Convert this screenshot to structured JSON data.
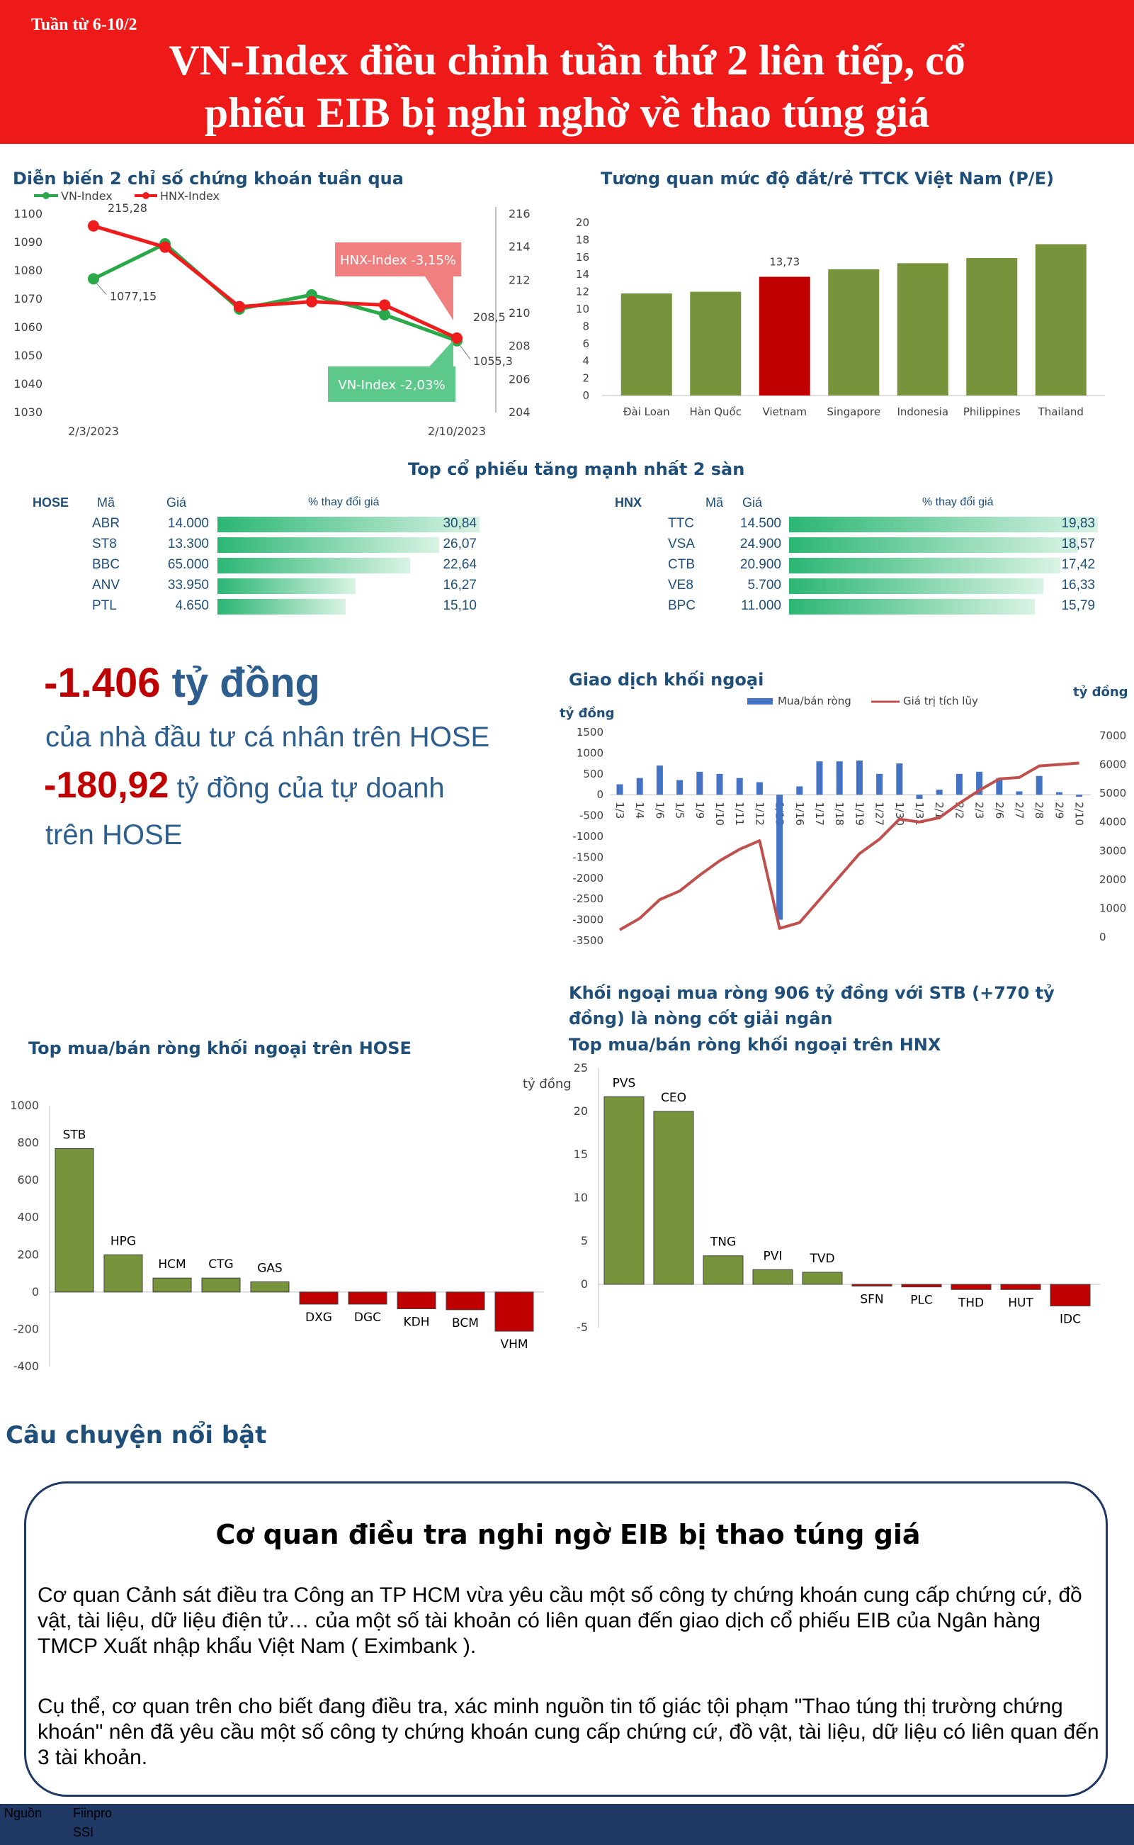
{
  "header": {
    "week": "Tuần từ 6-10/2",
    "title_line1": "VN-Index điều chỉnh tuần thứ 2 liên tiếp, cổ",
    "title_line2": "phiếu EIB bị nghi nghờ về thao túng giá"
  },
  "colors": {
    "header_red": "#ee1a1a",
    "navy": "#1f4e79",
    "green": "#77933c",
    "red": "#c00000",
    "blue": "#4472c4"
  },
  "index_section": {
    "title": "Diễn biến 2 chỉ số chứng khoán tuần qua",
    "vn_callout": "VN-Index -2,03%",
    "hnx_callout": "HNX-Index -3,15%"
  },
  "pe_section": {
    "title": "Tương quan mức độ đắt/rẻ TTCK Việt Nam (P/E)"
  },
  "top_section": {
    "title": "Top cổ phiếu tăng mạnh nhất 2 sàn"
  },
  "tables": {
    "hose": {
      "exchange": "HOSE",
      "col_code": "Mã",
      "col_price": "Giá",
      "col_pct": "% thay đổi giá",
      "rows": [
        {
          "code": "ABR",
          "price": "14.000",
          "pct_label": "30,84",
          "pct": 30.84
        },
        {
          "code": "ST8",
          "price": "13.300",
          "pct_label": "26,07",
          "pct": 26.07
        },
        {
          "code": "BBC",
          "price": "65.000",
          "pct_label": "22,64",
          "pct": 22.64
        },
        {
          "code": "ANV",
          "price": "33.950",
          "pct_label": "16,27",
          "pct": 16.27
        },
        {
          "code": "PTL",
          "price": "4.650",
          "pct_label": "15,10",
          "pct": 15.1
        }
      ]
    },
    "hnx": {
      "exchange": "HNX",
      "col_code": "Mã",
      "col_price": "Giá",
      "col_pct": "% thay đổi giá",
      "rows": [
        {
          "code": "TTC",
          "price": "14.500",
          "pct_label": "19,83",
          "pct": 19.83
        },
        {
          "code": "VSA",
          "price": "24.900",
          "pct_label": "18,57",
          "pct": 18.57
        },
        {
          "code": "CTB",
          "price": "20.900",
          "pct_label": "17,42",
          "pct": 17.42
        },
        {
          "code": "VE8",
          "price": "5.700",
          "pct_label": "16,33",
          "pct": 16.33
        },
        {
          "code": "BPC",
          "price": "11.000",
          "pct_label": "15,79",
          "pct": 15.79
        }
      ]
    }
  },
  "highlights": {
    "amount1": "-1.406",
    "unit1": " tỷ đồng",
    "desc1": "của nhà đầu tư cá nhân trên HOSE",
    "amount2": "-180,92",
    "desc2a": " tỷ đồng của tự doanh",
    "desc2b": "trên HOSE"
  },
  "foreign_section": {
    "title": "Giao dịch khối ngoại",
    "headline": "Khối ngoại mua ròng 906 tỷ đồng với STB (+770 tỷ đồng) là nòng cốt giải ngân",
    "hose_title": "Top mua/bán ròng khối ngoại trên HOSE",
    "hnx_title": "Top mua/bán ròng khối ngoại trên HNX"
  },
  "story": {
    "section_title": "Câu chuyện nổi bật",
    "heading": "Cơ quan điều tra nghi ngờ EIB bị thao túng giá",
    "p1": "Cơ quan Cảnh sát điều tra Công an TP HCM vừa yêu cầu một số công ty chứng khoán cung cấp chứng cứ, đồ vật, tài liệu, dữ liệu điện tử… của một số tài khoản có liên quan đến giao dịch cổ phiếu EIB của Ngân hàng TMCP Xuất nhập khẩu Việt Nam ( Eximbank ).",
    "p2": "Cụ thể, cơ quan trên cho biết đang điều tra, xác minh nguồn tin tố giác tội phạm \"Thao túng thị trường chứng khoán\" nên đã yêu cầu một số công ty chứng khoán cung cấp chứng cứ, đồ vật, tài liệu, dữ liệu có liên quan đến 3 tài khoản."
  },
  "footer": {
    "label": "Nguồn",
    "source1": "Fiinpro",
    "source2": "SSI"
  },
  "chart_data": [
    {
      "id": "index_lines",
      "type": "line",
      "x": [
        "2/3/2023",
        "",
        "",
        "",
        "",
        "2/10/2023"
      ],
      "xlabels": [
        "2/3/2023",
        "2/10/2023"
      ],
      "series": [
        {
          "name": "VN-Index",
          "axis": "left",
          "color": "#2ba84a",
          "values": [
            1077.15,
            1089.5,
            1066.5,
            1071.5,
            1064.5,
            1055.3
          ]
        },
        {
          "name": "HNX-Index",
          "axis": "right",
          "color": "#ee1c1c",
          "values": [
            215.28,
            214.0,
            210.4,
            210.7,
            210.5,
            208.5
          ]
        }
      ],
      "labels": [
        "215,28",
        "1077,15",
        "208,5",
        "1055,3"
      ],
      "yticks_left": [
        "1100",
        "1090",
        "1080",
        "1070",
        "1060",
        "1050",
        "1040",
        "1030"
      ],
      "yticks_right": [
        "216",
        "214",
        "212",
        "210",
        "208",
        "206",
        "204"
      ],
      "ylim_left": [
        1030,
        1100
      ],
      "ylim_right": [
        204,
        216
      ]
    },
    {
      "id": "pe_bar",
      "type": "bar",
      "categories": [
        "Đài Loan",
        "Hàn Quốc",
        "Vietnam",
        "Singapore",
        "Indonesia",
        "Philippines",
        "Thailand"
      ],
      "values": [
        11.8,
        12.0,
        13.73,
        14.6,
        15.3,
        15.9,
        17.5
      ],
      "highlight_index": 2,
      "data_label": "13,73",
      "ylim": [
        0,
        20
      ],
      "yticks": [
        "20",
        "18",
        "16",
        "14",
        "12",
        "10",
        "8",
        "6",
        "4",
        "2",
        "0"
      ]
    },
    {
      "id": "foreign_trading",
      "type": "bar",
      "categories": [
        "1/3",
        "1/4",
        "1/6",
        "1/5",
        "1/9",
        "1/10",
        "1/11",
        "1/12",
        "1/13",
        "1/16",
        "1/17",
        "1/18",
        "1/19",
        "1/27",
        "1/30",
        "1/31",
        "2/1",
        "2/2",
        "2/3",
        "2/6",
        "2/7",
        "2/8",
        "2/9",
        "2/10"
      ],
      "series": [
        {
          "name": "Mua/bán ròng",
          "axis": "left",
          "color": "#4472c4",
          "values": [
            250,
            400,
            700,
            350,
            550,
            500,
            400,
            300,
            -3000,
            200,
            800,
            800,
            820,
            500,
            750,
            -100,
            120,
            500,
            550,
            400,
            80,
            450,
            60,
            -50
          ]
        },
        {
          "name": "Giá trị tích lũy",
          "axis": "right",
          "color": "#c0504d",
          "values": [
            250,
            650,
            1300,
            1600,
            2150,
            2650,
            3050,
            3350,
            300,
            500,
            1300,
            2100,
            2900,
            3400,
            4100,
            4000,
            4150,
            4650,
            5100,
            5500,
            5550,
            5950,
            6000,
            6050
          ]
        }
      ],
      "ylabel_left": "tỷ đồng",
      "ylabel_right": "tỷ đồng",
      "yticks_left": [
        "1500",
        "1000",
        "500",
        "0",
        "-500",
        "-1000",
        "-1500",
        "-2000",
        "-2500",
        "-3000",
        "-3500"
      ],
      "yticks_right": [
        "7000",
        "6000",
        "5000",
        "4000",
        "3000",
        "2000",
        "1000",
        "0"
      ],
      "ylim_left": [
        -3500,
        1500
      ],
      "ylim_right": [
        0,
        7000
      ]
    },
    {
      "id": "hose_foreign",
      "type": "bar",
      "categories": [
        "STB",
        "HPG",
        "HCM",
        "CTG",
        "GAS",
        "DXG",
        "DGC",
        "KDH",
        "BCM",
        "VHM"
      ],
      "values": [
        770,
        200,
        75,
        75,
        55,
        -65,
        -65,
        -90,
        -95,
        -210
      ],
      "ylim": [
        -400,
        1000
      ],
      "yticks": [
        "1000",
        "800",
        "600",
        "400",
        "200",
        "0",
        "-200",
        "-400"
      ]
    },
    {
      "id": "hnx_foreign",
      "type": "bar",
      "categories": [
        "PVS",
        "CEO",
        "TNG",
        "PVI",
        "TVD",
        "SFN",
        "PLC",
        "THD",
        "HUT",
        "IDC"
      ],
      "values": [
        21.7,
        20.0,
        3.3,
        1.7,
        1.4,
        -0.2,
        -0.3,
        -0.6,
        -0.6,
        -2.5
      ],
      "ylabel": "tỷ đồng",
      "ylim": [
        -5,
        25
      ],
      "yticks": [
        "25",
        "20",
        "15",
        "10",
        "5",
        "0",
        "-5"
      ]
    }
  ]
}
